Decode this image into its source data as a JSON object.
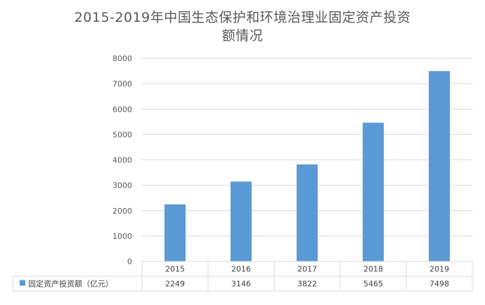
{
  "chart_data": {
    "type": "bar",
    "title_lines": [
      "2015-2019年中国生态保护和环境治理业固定资产投资",
      "额情况"
    ],
    "categories": [
      "2015",
      "2016",
      "2017",
      "2018",
      "2019"
    ],
    "series": [
      {
        "name": "固定资产投资额（亿元）",
        "values": [
          2249,
          3146,
          3822,
          5465,
          7498
        ],
        "color": "#5b9bd5"
      }
    ],
    "y_ticks": [
      "0",
      "1000",
      "2000",
      "3000",
      "4000",
      "5000",
      "6000",
      "7000",
      "8000"
    ],
    "ylim": [
      0,
      8000
    ],
    "grid": true,
    "data_table": true
  }
}
